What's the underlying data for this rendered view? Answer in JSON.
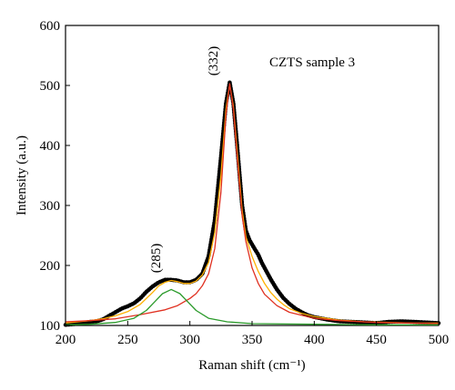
{
  "chart_data": {
    "type": "line",
    "title": "",
    "xlabel": "Raman shift (cm⁻¹)",
    "ylabel": "Intensity (a.u.)",
    "xlim": [
      200,
      500
    ],
    "ylim": [
      100,
      600
    ],
    "xticks": [
      200,
      250,
      300,
      350,
      400,
      450,
      500
    ],
    "yticks": [
      100,
      200,
      300,
      400,
      500,
      600
    ],
    "grid": false,
    "legend": "none",
    "annotations": [
      {
        "text": "CZTS sample 3",
        "x": 315,
        "y": 572
      },
      {
        "text": "(332)",
        "x": 332,
        "y": 526
      },
      {
        "text": "(285)",
        "x": 285,
        "y": 215
      }
    ],
    "series": [
      {
        "color": "#000000",
        "style": "thick-dotted",
        "points": [
          [
            200,
            101
          ],
          [
            205,
            102
          ],
          [
            210,
            103
          ],
          [
            215,
            104
          ],
          [
            220,
            106
          ],
          [
            225,
            107
          ],
          [
            230,
            110
          ],
          [
            235,
            116
          ],
          [
            240,
            122
          ],
          [
            245,
            128
          ],
          [
            250,
            132
          ],
          [
            255,
            137
          ],
          [
            260,
            145
          ],
          [
            265,
            156
          ],
          [
            270,
            165
          ],
          [
            275,
            172
          ],
          [
            280,
            176
          ],
          [
            285,
            176
          ],
          [
            290,
            175
          ],
          [
            295,
            172
          ],
          [
            300,
            172
          ],
          [
            305,
            176
          ],
          [
            310,
            186
          ],
          [
            315,
            215
          ],
          [
            320,
            275
          ],
          [
            325,
            380
          ],
          [
            329,
            470
          ],
          [
            332,
            505
          ],
          [
            335,
            470
          ],
          [
            338,
            400
          ],
          [
            342,
            300
          ],
          [
            345,
            258
          ],
          [
            348,
            242
          ],
          [
            352,
            228
          ],
          [
            355,
            218
          ],
          [
            358,
            204
          ],
          [
            360,
            196
          ],
          [
            365,
            177
          ],
          [
            370,
            160
          ],
          [
            375,
            146
          ],
          [
            380,
            136
          ],
          [
            385,
            128
          ],
          [
            390,
            122
          ],
          [
            395,
            117
          ],
          [
            400,
            114
          ],
          [
            410,
            110
          ],
          [
            420,
            107
          ],
          [
            430,
            106
          ],
          [
            440,
            105
          ],
          [
            450,
            104
          ],
          [
            460,
            106
          ],
          [
            470,
            107
          ],
          [
            480,
            106
          ],
          [
            490,
            105
          ],
          [
            500,
            104
          ]
        ]
      },
      {
        "color": "#ffb000",
        "style": "solid",
        "points": [
          [
            200,
            104
          ],
          [
            210,
            106
          ],
          [
            220,
            108
          ],
          [
            230,
            111
          ],
          [
            240,
            116
          ],
          [
            250,
            123
          ],
          [
            260,
            135
          ],
          [
            270,
            155
          ],
          [
            275,
            166
          ],
          [
            280,
            172
          ],
          [
            285,
            175
          ],
          [
            290,
            173
          ],
          [
            295,
            170
          ],
          [
            300,
            170
          ],
          [
            305,
            174
          ],
          [
            310,
            184
          ],
          [
            315,
            205
          ],
          [
            320,
            255
          ],
          [
            325,
            350
          ],
          [
            329,
            460
          ],
          [
            332,
            502
          ],
          [
            335,
            465
          ],
          [
            338,
            390
          ],
          [
            342,
            292
          ],
          [
            345,
            248
          ],
          [
            350,
            215
          ],
          [
            355,
            190
          ],
          [
            360,
            170
          ],
          [
            365,
            155
          ],
          [
            370,
            144
          ],
          [
            375,
            135
          ],
          [
            380,
            128
          ],
          [
            390,
            120
          ],
          [
            400,
            115
          ],
          [
            420,
            109
          ],
          [
            440,
            106
          ],
          [
            460,
            105
          ],
          [
            480,
            104
          ],
          [
            500,
            104
          ]
        ]
      },
      {
        "color": "#e03020",
        "style": "solid",
        "points": [
          [
            200,
            106
          ],
          [
            220,
            108
          ],
          [
            240,
            111
          ],
          [
            260,
            118
          ],
          [
            280,
            126
          ],
          [
            290,
            133
          ],
          [
            300,
            145
          ],
          [
            305,
            153
          ],
          [
            310,
            166
          ],
          [
            315,
            186
          ],
          [
            320,
            228
          ],
          [
            325,
            322
          ],
          [
            329,
            450
          ],
          [
            332,
            503
          ],
          [
            335,
            460
          ],
          [
            338,
            380
          ],
          [
            342,
            283
          ],
          [
            345,
            240
          ],
          [
            350,
            196
          ],
          [
            355,
            170
          ],
          [
            360,
            152
          ],
          [
            370,
            133
          ],
          [
            380,
            122
          ],
          [
            400,
            112
          ],
          [
            420,
            108
          ],
          [
            450,
            105
          ],
          [
            500,
            103
          ]
        ]
      },
      {
        "color": "#2a9a2a",
        "style": "solid",
        "points": [
          [
            200,
            101
          ],
          [
            220,
            102
          ],
          [
            240,
            105
          ],
          [
            255,
            112
          ],
          [
            265,
            125
          ],
          [
            272,
            140
          ],
          [
            278,
            153
          ],
          [
            285,
            160
          ],
          [
            292,
            153
          ],
          [
            298,
            140
          ],
          [
            305,
            125
          ],
          [
            315,
            112
          ],
          [
            330,
            106
          ],
          [
            350,
            103
          ],
          [
            400,
            102
          ],
          [
            450,
            101
          ],
          [
            500,
            101
          ]
        ]
      }
    ]
  }
}
